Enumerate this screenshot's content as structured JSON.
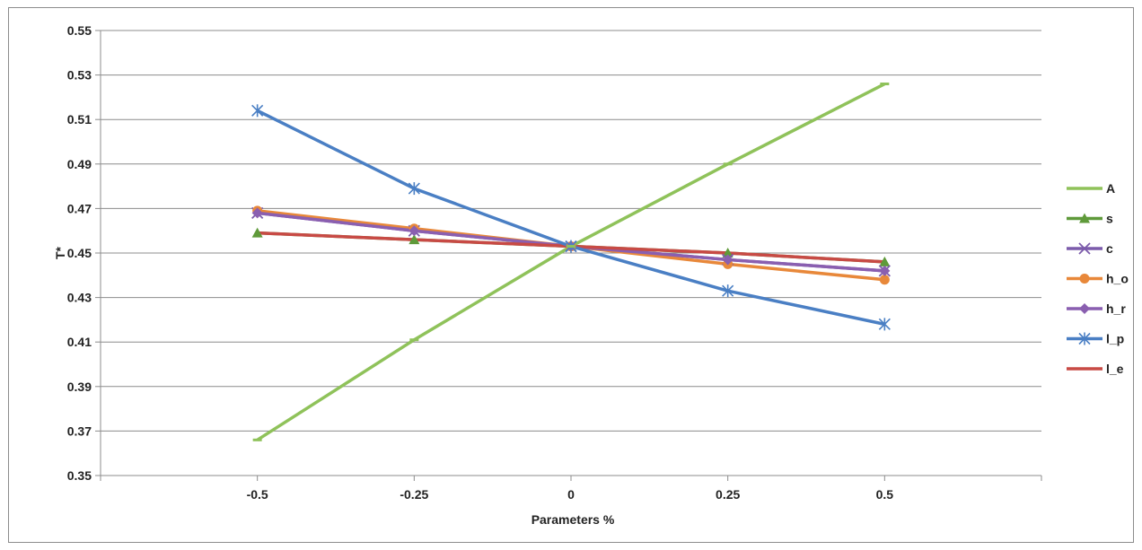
{
  "chart_data": {
    "type": "line",
    "title": "",
    "xlabel": "Parameters %",
    "ylabel": "T*",
    "x": [
      -0.5,
      -0.25,
      0,
      0.25,
      0.5
    ],
    "x_tick_labels": [
      "-0.5",
      "-0.25",
      "0",
      "0.25",
      "0.5"
    ],
    "ylim": [
      0.35,
      0.55
    ],
    "y_ticks": [
      0.35,
      0.37,
      0.39,
      0.41,
      0.43,
      0.45,
      0.47,
      0.49,
      0.51,
      0.53,
      0.55
    ],
    "y_tick_labels": [
      "0.35",
      "0.37",
      "0.39",
      "0.41",
      "0.43",
      "0.45",
      "0.47",
      "0.49",
      "0.51",
      "0.53",
      "0.55"
    ],
    "grid": "horizontal",
    "legend_position": "right",
    "series": [
      {
        "name": "A",
        "color": "#8fc25a",
        "marker": "dash",
        "values": [
          0.366,
          0.411,
          0.453,
          0.49,
          0.526
        ]
      },
      {
        "name": "s",
        "color": "#5f9a3a",
        "marker": "triangle",
        "values": [
          0.459,
          0.456,
          0.453,
          0.45,
          0.446
        ]
      },
      {
        "name": "c",
        "color": "#7c5bab",
        "marker": "x",
        "values": [
          0.468,
          0.46,
          0.453,
          0.447,
          0.442
        ]
      },
      {
        "name": "h_o",
        "color": "#e8883a",
        "marker": "circle",
        "values": [
          0.469,
          0.461,
          0.453,
          0.445,
          0.438
        ]
      },
      {
        "name": "h_r",
        "color": "#8a5fb0",
        "marker": "diamond",
        "values": [
          0.468,
          0.46,
          0.453,
          0.447,
          0.442
        ]
      },
      {
        "name": "l_p",
        "color": "#4a7fc4",
        "marker": "star",
        "values": [
          0.514,
          0.479,
          0.453,
          0.433,
          0.418
        ]
      },
      {
        "name": "l_e",
        "color": "#c84a45",
        "marker": "none",
        "values": [
          0.459,
          0.456,
          0.453,
          0.45,
          0.446
        ]
      }
    ]
  }
}
